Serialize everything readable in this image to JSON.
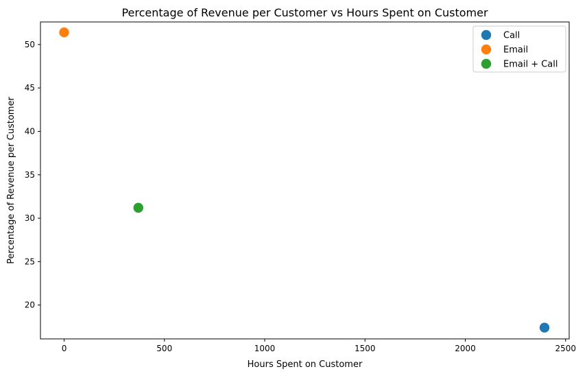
{
  "chart_data": {
    "type": "scatter",
    "title": "Percentage of Revenue per Customer vs Hours Spent on Customer",
    "xlabel": "Hours Spent on Customer",
    "ylabel": "Percentage of Revenue per Customer",
    "xlim": [
      -118,
      2518
    ],
    "ylim": [
      16.1,
      52.6
    ],
    "xticks": [
      0,
      500,
      1000,
      1500,
      2000,
      2500
    ],
    "yticks": [
      20,
      25,
      30,
      35,
      40,
      45,
      50
    ],
    "grid": false,
    "legend_position": "top-right",
    "series": [
      {
        "name": "Call",
        "color": "#1f77b4",
        "points": [
          {
            "x": 2395,
            "y": 17.4
          }
        ]
      },
      {
        "name": "Email",
        "color": "#ff7f0e",
        "points": [
          {
            "x": 0,
            "y": 51.4
          }
        ]
      },
      {
        "name": "Email + Call",
        "color": "#2ca02c",
        "points": [
          {
            "x": 370,
            "y": 31.2
          }
        ]
      }
    ]
  }
}
